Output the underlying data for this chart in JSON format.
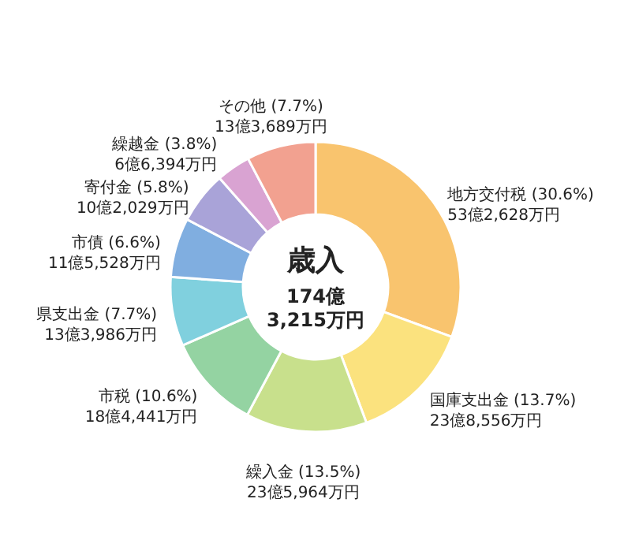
{
  "chart_data": {
    "type": "donut",
    "title": "歳入",
    "subtitle": "174億\n3,215万円",
    "categories": [
      "地方交付税 (30.6%)\n53億2,628万円",
      "国庫支出金 (13.7%)\n23億8,556万円",
      "繰入金 (13.5%)\n23億5,964万円",
      "市税 (10.6%)\n18億4,441万円",
      "県支出金 (7.7%)\n13億3,986万円",
      "市債 (6.6%)\n11億5,528万円",
      "寄付金 (5.8%)\n10億2,029万円",
      "繰越金 (3.8%)\n6億6,394万円",
      "その他 (7.7%)\n13億3,689万円"
    ],
    "values": [
      30.6,
      13.7,
      13.5,
      10.6,
      7.7,
      6.6,
      5.8,
      3.8,
      7.7
    ],
    "colors": [
      "#f9c46e",
      "#fbe27e",
      "#c8e08c",
      "#94d3a2",
      "#80d0de",
      "#80aee0",
      "#a9a3d8",
      "#d9a3d2",
      "#f2a190"
    ]
  }
}
